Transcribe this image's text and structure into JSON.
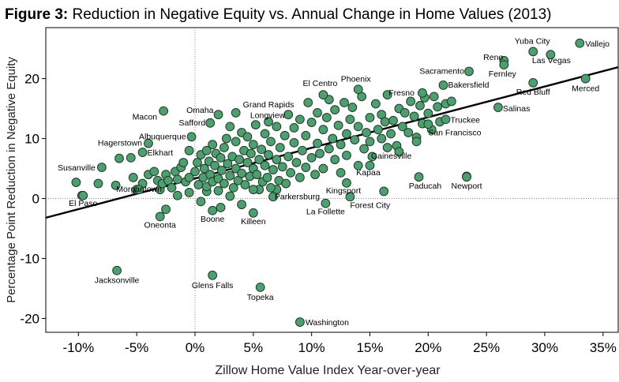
{
  "chart_data": {
    "type": "scatter",
    "title_prefix": "Figure 3:",
    "title": "Reduction in Negative Equity vs. Annual Change in Home Values (2013)",
    "xlabel": "Zillow Home Value Index Year-over-year",
    "ylabel": "Percentage Point Reduction in Negative Equity",
    "xlim": [
      -12.8,
      36.3
    ],
    "ylim": [
      -22.3,
      28.5
    ],
    "x_ticks": [
      -10,
      -5,
      0,
      5,
      10,
      15,
      20,
      25,
      30,
      35
    ],
    "x_tick_labels": [
      "-10%",
      "-5%",
      "0%",
      "5%",
      "10%",
      "15%",
      "20%",
      "25%",
      "30%",
      "35%"
    ],
    "y_ticks": [
      -20,
      -10,
      0,
      10,
      20
    ],
    "y_tick_labels": [
      "-20",
      "-10",
      "0",
      "10",
      "20"
    ],
    "grid": false,
    "reference_lines": {
      "x": 0,
      "y": 0,
      "style": "dotted"
    },
    "trend_line": {
      "x": [
        -12.8,
        36.3
      ],
      "y": [
        -3.2,
        21.9
      ]
    },
    "colors": {
      "point_fill": "#4e9e70",
      "point_stroke": "#1e3a2a",
      "trend": "#000000"
    },
    "labeled_points": [
      {
        "label": "Vallejo",
        "x": 33,
        "y": 25.9
      },
      {
        "label": "Yuba City",
        "x": 29,
        "y": 24.5
      },
      {
        "label": "Reno",
        "x": 26.5,
        "y": 23
      },
      {
        "label": "Las Vegas",
        "x": 30.5,
        "y": 24
      },
      {
        "label": "Sacramento",
        "x": 23.5,
        "y": 21.2
      },
      {
        "label": "Fernley",
        "x": 26.5,
        "y": 22.3
      },
      {
        "label": "Bakersfield",
        "x": 21.3,
        "y": 18.9
      },
      {
        "label": "Red Bluff",
        "x": 29,
        "y": 19.3
      },
      {
        "label": "Merced",
        "x": 33.5,
        "y": 20
      },
      {
        "label": "Phoenix",
        "x": 14,
        "y": 18.2
      },
      {
        "label": "El Centro",
        "x": 11,
        "y": 17.3
      },
      {
        "label": "Fresno",
        "x": 19.5,
        "y": 17.6
      },
      {
        "label": "Truckee",
        "x": 21.5,
        "y": 13.2
      },
      {
        "label": "Salinas",
        "x": 26,
        "y": 15.2
      },
      {
        "label": "San Francisco",
        "x": 20,
        "y": 12.4
      },
      {
        "label": "Omaha",
        "x": 2,
        "y": 14
      },
      {
        "label": "Grand Rapids",
        "x": 3.5,
        "y": 14.3
      },
      {
        "label": "Macon",
        "x": -2.7,
        "y": 14.6
      },
      {
        "label": "Safford",
        "x": 1.3,
        "y": 12.6
      },
      {
        "label": "Longview",
        "x": 6.3,
        "y": 12.8
      },
      {
        "label": "Albuquerque",
        "x": -0.3,
        "y": 10.3
      },
      {
        "label": "Hagerstown",
        "x": -4,
        "y": 9.2
      },
      {
        "label": "Elkhart",
        "x": -4.5,
        "y": 7.7
      },
      {
        "label": "Susanville",
        "x": -8,
        "y": 5.2
      },
      {
        "label": "Gainesville",
        "x": 16.5,
        "y": 8.5
      },
      {
        "label": "Kapaa",
        "x": 15,
        "y": 5.5
      },
      {
        "label": "Kingsport",
        "x": 13,
        "y": 2.6
      },
      {
        "label": "Paducah",
        "x": 19.2,
        "y": 3.6
      },
      {
        "label": "Newport",
        "x": 23.3,
        "y": 3.6
      },
      {
        "label": "El Paso",
        "x": -9.6,
        "y": 0.5
      },
      {
        "label": "Morgantown",
        "x": -4.8,
        "y": 1.5
      },
      {
        "label": "Parkersburg",
        "x": 6.7,
        "y": 0.3
      },
      {
        "label": "La Follette",
        "x": 11.2,
        "y": -0.8
      },
      {
        "label": "Forest City",
        "x": 13.3,
        "y": 0.3
      },
      {
        "label": "Boone",
        "x": 1.5,
        "y": -2
      },
      {
        "label": "Killeen",
        "x": 5,
        "y": -2.4
      },
      {
        "label": "Oneonta",
        "x": -3,
        "y": -3
      },
      {
        "label": "Jacksonville",
        "x": -6.7,
        "y": -12
      },
      {
        "label": "Glens Falls",
        "x": 1.5,
        "y": -12.8
      },
      {
        "label": "Topeka",
        "x": 5.6,
        "y": -14.8
      },
      {
        "label": "Washington",
        "x": 9,
        "y": -20.6
      }
    ],
    "other_points": [
      [
        -10.2,
        2.7
      ],
      [
        -9.7,
        0.5
      ],
      [
        -8.3,
        2.5
      ],
      [
        -6.8,
        2.2
      ],
      [
        -6.5,
        6.7
      ],
      [
        -5.5,
        6.8
      ],
      [
        -5.3,
        3.5
      ],
      [
        -5,
        1.5
      ],
      [
        -4.5,
        2.5
      ],
      [
        -4,
        4
      ],
      [
        -3.5,
        4.5
      ],
      [
        -3.2,
        3
      ],
      [
        -3,
        1.5
      ],
      [
        -2.8,
        2.5
      ],
      [
        -2.5,
        4
      ],
      [
        -2.3,
        3
      ],
      [
        -2,
        1.8
      ],
      [
        -1.7,
        4.5
      ],
      [
        -1.5,
        3.2
      ],
      [
        -1.2,
        5.2
      ],
      [
        -1,
        6
      ],
      [
        -0.8,
        2.8
      ],
      [
        -0.5,
        8
      ],
      [
        -0.5,
        3.5
      ],
      [
        -2.5,
        -1.8
      ],
      [
        -1.5,
        0.5
      ],
      [
        -0.5,
        1
      ],
      [
        0.5,
        -0.5
      ],
      [
        1,
        1.2
      ],
      [
        2.2,
        -1.5
      ],
      [
        3,
        0.4
      ],
      [
        4,
        -1
      ],
      [
        5.5,
        1.5
      ],
      [
        7,
        1.5
      ],
      [
        0,
        4.5
      ],
      [
        0.2,
        6
      ],
      [
        0.3,
        2.3
      ],
      [
        0.5,
        7.3
      ],
      [
        0.7,
        3.5
      ],
      [
        0.8,
        5
      ],
      [
        1,
        2
      ],
      [
        1,
        8
      ],
      [
        1.2,
        6.2
      ],
      [
        1.3,
        4
      ],
      [
        1.5,
        2.8
      ],
      [
        1.5,
        9
      ],
      [
        1.7,
        5.5
      ],
      [
        1.8,
        7.5
      ],
      [
        2,
        3.3
      ],
      [
        2,
        1.3
      ],
      [
        2.2,
        6.8
      ],
      [
        2.3,
        4.7
      ],
      [
        2.5,
        8.5
      ],
      [
        2.5,
        2.5
      ],
      [
        2.7,
        10
      ],
      [
        2.8,
        5.8
      ],
      [
        3,
        3.8
      ],
      [
        3,
        12
      ],
      [
        3.2,
        7
      ],
      [
        3.3,
        1.8
      ],
      [
        3.5,
        5
      ],
      [
        3.5,
        9.5
      ],
      [
        3.7,
        3
      ],
      [
        3.8,
        6.5
      ],
      [
        4,
        11
      ],
      [
        4,
        4.2
      ],
      [
        4.2,
        8
      ],
      [
        4.3,
        2.3
      ],
      [
        4.5,
        6
      ],
      [
        4.5,
        10.3
      ],
      [
        4.7,
        3.7
      ],
      [
        4.8,
        7.5
      ],
      [
        5,
        5
      ],
      [
        5,
        9
      ],
      [
        5,
        1.5
      ],
      [
        5.2,
        12.3
      ],
      [
        5.3,
        4
      ],
      [
        5.5,
        6.5
      ],
      [
        5.7,
        8.2
      ],
      [
        5.8,
        2.8
      ],
      [
        6,
        10.8
      ],
      [
        6,
        5.5
      ],
      [
        6.2,
        3.5
      ],
      [
        6.3,
        7.3
      ],
      [
        6.5,
        9.5
      ],
      [
        6.5,
        1.8
      ],
      [
        6.7,
        4.8
      ],
      [
        7,
        6.5
      ],
      [
        7,
        12
      ],
      [
        7.2,
        3
      ],
      [
        7.3,
        8.5
      ],
      [
        7.5,
        5.3
      ],
      [
        7.7,
        10.5
      ],
      [
        7.8,
        2.5
      ],
      [
        8,
        7
      ],
      [
        8,
        14
      ],
      [
        8.2,
        4.3
      ],
      [
        8.5,
        9.3
      ],
      [
        8.5,
        11.8
      ],
      [
        8.7,
        6
      ],
      [
        9,
        3.5
      ],
      [
        9,
        13.2
      ],
      [
        9.2,
        8
      ],
      [
        9.5,
        5.2
      ],
      [
        9.5,
        10.5
      ],
      [
        9.7,
        16
      ],
      [
        10,
        6.8
      ],
      [
        10,
        12.7
      ],
      [
        10.3,
        4
      ],
      [
        10.5,
        9.2
      ],
      [
        10.5,
        14.3
      ],
      [
        10.7,
        7.5
      ],
      [
        11,
        11.5
      ],
      [
        11,
        5
      ],
      [
        11.3,
        13.5
      ],
      [
        11.5,
        8.3
      ],
      [
        11.5,
        16.5
      ],
      [
        11.8,
        10
      ],
      [
        12,
        6.5
      ],
      [
        12,
        14.8
      ],
      [
        12.3,
        12.2
      ],
      [
        12.5,
        9
      ],
      [
        12.5,
        4.3
      ],
      [
        12.8,
        16
      ],
      [
        13,
        10.8
      ],
      [
        13,
        7.2
      ],
      [
        13.3,
        13.2
      ],
      [
        13.5,
        15.2
      ],
      [
        13.7,
        9.8
      ],
      [
        14,
        12
      ],
      [
        14,
        5.5
      ],
      [
        14.3,
        17
      ],
      [
        14.5,
        8.3
      ],
      [
        14.7,
        11
      ],
      [
        15,
        13.5
      ],
      [
        15,
        9.5
      ],
      [
        15.2,
        7
      ],
      [
        15.5,
        15.8
      ],
      [
        15.7,
        11.5
      ],
      [
        16,
        14
      ],
      [
        16,
        10
      ],
      [
        16.3,
        12.8
      ],
      [
        16.5,
        17.3
      ],
      [
        16.8,
        10.8
      ],
      [
        17,
        13
      ],
      [
        17.3,
        8.8
      ],
      [
        17.5,
        15
      ],
      [
        17.8,
        12
      ],
      [
        18,
        14.3
      ],
      [
        18.3,
        11
      ],
      [
        18.5,
        16.2
      ],
      [
        18.8,
        13.7
      ],
      [
        19,
        10.2
      ],
      [
        19.3,
        15.5
      ],
      [
        19.5,
        12.5
      ],
      [
        19.7,
        16.8
      ],
      [
        20,
        14.2
      ],
      [
        20.3,
        11.5
      ],
      [
        20.5,
        17
      ],
      [
        20.8,
        15.3
      ],
      [
        21,
        12.8
      ],
      [
        21.5,
        15.8
      ],
      [
        22,
        16.2
      ],
      [
        19,
        9.5
      ],
      [
        17.5,
        7.8
      ],
      [
        16.2,
        1.2
      ],
      [
        23.3,
        3.7
      ]
    ]
  }
}
